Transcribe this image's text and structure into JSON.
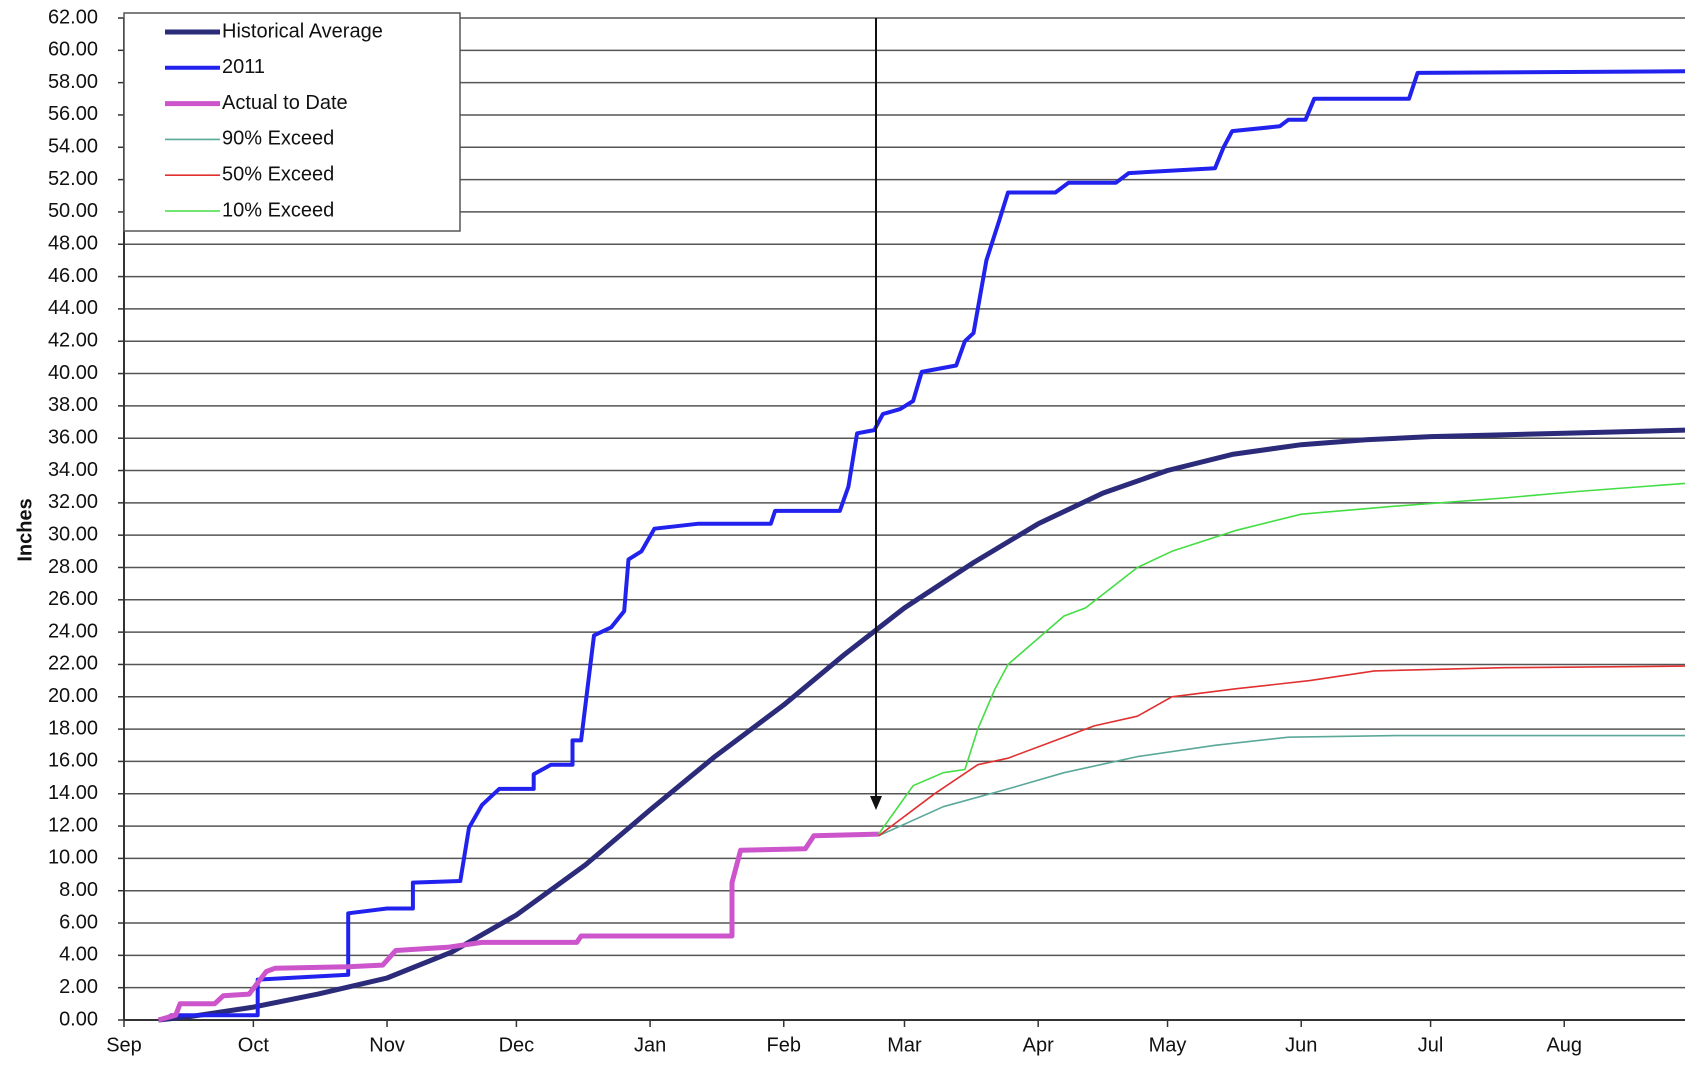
{
  "chart_data": {
    "type": "line",
    "y_label": "Inches",
    "xlim": [
      0,
      362
    ],
    "xticks": [
      {
        "value": 0,
        "label": "Sep"
      },
      {
        "value": 30,
        "label": "Oct"
      },
      {
        "value": 61,
        "label": "Nov"
      },
      {
        "value": 91,
        "label": "Dec"
      },
      {
        "value": 122,
        "label": "Jan"
      },
      {
        "value": 153,
        "label": "Feb"
      },
      {
        "value": 181,
        "label": "Mar"
      },
      {
        "value": 212,
        "label": "Apr"
      },
      {
        "value": 242,
        "label": "May"
      },
      {
        "value": 273,
        "label": "Jun"
      },
      {
        "value": 303,
        "label": "Jul"
      },
      {
        "value": 334,
        "label": "Aug"
      }
    ],
    "ylim": [
      0,
      62
    ],
    "yticks": [
      {
        "value": 0,
        "label": "0.00"
      },
      {
        "value": 2,
        "label": "2.00"
      },
      {
        "value": 4,
        "label": "4.00"
      },
      {
        "value": 6,
        "label": "6.00"
      },
      {
        "value": 8,
        "label": "8.00"
      },
      {
        "value": 10,
        "label": "10.00"
      },
      {
        "value": 12,
        "label": "12.00"
      },
      {
        "value": 14,
        "label": "14.00"
      },
      {
        "value": 16,
        "label": "16.00"
      },
      {
        "value": 18,
        "label": "18.00"
      },
      {
        "value": 20,
        "label": "20.00"
      },
      {
        "value": 22,
        "label": "22.00"
      },
      {
        "value": 24,
        "label": "24.00"
      },
      {
        "value": 26,
        "label": "26.00"
      },
      {
        "value": 28,
        "label": "28.00"
      },
      {
        "value": 30,
        "label": "30.00"
      },
      {
        "value": 32,
        "label": "32.00"
      },
      {
        "value": 34,
        "label": "34.00"
      },
      {
        "value": 36,
        "label": "36.00"
      },
      {
        "value": 38,
        "label": "38.00"
      },
      {
        "value": 40,
        "label": "40.00"
      },
      {
        "value": 42,
        "label": "42.00"
      },
      {
        "value": 44,
        "label": "44.00"
      },
      {
        "value": 46,
        "label": "46.00"
      },
      {
        "value": 48,
        "label": "48.00"
      },
      {
        "value": 50,
        "label": "50.00"
      },
      {
        "value": 52,
        "label": "52.00"
      },
      {
        "value": 54,
        "label": "54.00"
      },
      {
        "value": 56,
        "label": "56.00"
      },
      {
        "value": 58,
        "label": "58.00"
      },
      {
        "value": 60,
        "label": "60.00"
      },
      {
        "value": 62,
        "label": "62.00"
      }
    ],
    "grid": true,
    "legend": "upper left",
    "series": [
      {
        "name": "Historical Average",
        "color": "#2b2b7a",
        "width": 5,
        "x": [
          8,
          15,
          30,
          45,
          61,
          76,
          91,
          107,
          122,
          137,
          153,
          167,
          181,
          197,
          212,
          227,
          242,
          257,
          273,
          288,
          303,
          334,
          362
        ],
        "values": [
          0,
          0.2,
          0.8,
          1.6,
          2.6,
          4.2,
          6.5,
          9.6,
          13,
          16.3,
          19.5,
          22.6,
          25.5,
          28.3,
          30.7,
          32.6,
          34,
          35,
          35.6,
          35.9,
          36.1,
          36.3,
          36.5
        ]
      },
      {
        "name": "2011",
        "color": "#2222ee",
        "width": 4,
        "x": [
          9,
          11,
          31,
          31,
          52,
          52,
          61,
          67,
          67,
          78,
          80,
          83,
          87,
          95,
          95,
          99,
          104,
          104,
          106,
          109,
          113,
          116,
          117,
          120,
          123,
          133,
          150,
          151,
          166,
          168,
          170,
          174,
          176,
          180,
          183,
          185,
          193,
          195,
          197,
          200,
          203,
          205,
          216,
          219,
          230,
          233,
          253,
          255,
          257,
          268,
          270,
          274,
          276,
          298,
          300,
          362
        ],
        "values": [
          0,
          0.3,
          0.3,
          2.5,
          2.8,
          6.6,
          6.9,
          6.9,
          8.5,
          8.6,
          11.9,
          13.3,
          14.3,
          14.3,
          15.2,
          15.8,
          15.8,
          17.3,
          17.3,
          23.8,
          24.3,
          25.3,
          28.5,
          29,
          30.4,
          30.7,
          30.7,
          31.5,
          31.5,
          33,
          36.3,
          36.5,
          37.5,
          37.8,
          38.3,
          40.1,
          40.5,
          42,
          42.5,
          47,
          49.5,
          51.2,
          51.2,
          51.8,
          51.8,
          52.4,
          52.7,
          54,
          55,
          55.3,
          55.7,
          55.7,
          57,
          57,
          58.6,
          58.7
        ]
      },
      {
        "name": "Actual to Date",
        "color": "#cc55cc",
        "width": 5,
        "x": [
          8,
          12,
          13,
          21,
          23,
          29,
          33,
          35,
          52,
          60,
          63,
          75,
          83,
          105,
          106,
          141,
          141,
          143,
          158,
          160,
          175
        ],
        "values": [
          0,
          0.3,
          1,
          1,
          1.5,
          1.6,
          3,
          3.2,
          3.3,
          3.4,
          4.3,
          4.5,
          4.8,
          4.8,
          5.2,
          5.2,
          8.5,
          10.5,
          10.6,
          11.4,
          11.5
        ]
      },
      {
        "name": "90% Exceed",
        "color": "#5aa89a",
        "width": 1.6,
        "x": [
          175,
          190,
          205,
          218,
          235,
          253,
          270,
          295,
          362
        ],
        "values": [
          11.4,
          13.2,
          14.3,
          15.3,
          16.3,
          17,
          17.5,
          17.6,
          17.6
        ]
      },
      {
        "name": "50% Exceed",
        "color": "#e03030",
        "width": 1.6,
        "x": [
          175,
          188,
          198,
          205,
          218,
          225,
          235,
          243,
          258,
          275,
          290,
          320,
          362
        ],
        "values": [
          11.4,
          14,
          15.8,
          16.2,
          17.5,
          18.2,
          18.8,
          20,
          20.5,
          21,
          21.6,
          21.8,
          21.9
        ]
      },
      {
        "name": "10% Exceed",
        "color": "#44dd44",
        "width": 1.6,
        "x": [
          175,
          179,
          183,
          190,
          195,
          198,
          202,
          205,
          218,
          223,
          235,
          243,
          258,
          273,
          295,
          320,
          337,
          362
        ],
        "values": [
          11.5,
          13,
          14.5,
          15.3,
          15.5,
          18,
          20.5,
          22,
          25,
          25.5,
          28,
          29,
          30.3,
          31.3,
          31.8,
          32.3,
          32.7,
          33.2
        ]
      }
    ]
  }
}
